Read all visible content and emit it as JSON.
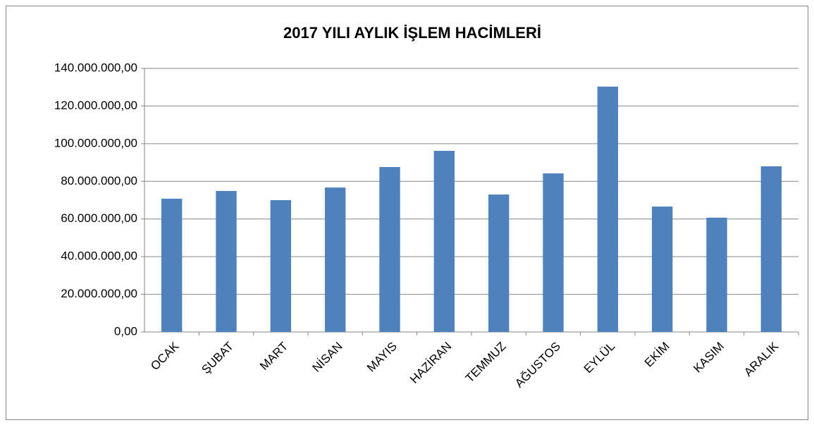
{
  "chart_data": {
    "type": "bar",
    "title": "2017 YILI AYLIK İŞLEM HACİMLERİ",
    "categories": [
      "OCAK",
      "ŞUBAT",
      "MART",
      "NİSAN",
      "MAYIS",
      "HAZİRAN",
      "TEMMUZ",
      "AĞUSTOS",
      "EYLÜL",
      "EKİM",
      "KASIM",
      "ARALIK"
    ],
    "values": [
      70800000,
      74900000,
      70000000,
      76700000,
      87600000,
      96200000,
      73000000,
      84200000,
      130300000,
      66600000,
      60700000,
      88000000
    ],
    "color": "#4f81bd",
    "ylim": [
      0,
      140000000
    ],
    "yticks": [
      {
        "value": 0,
        "label": "0,00"
      },
      {
        "value": 20000000,
        "label": "20.000.000,00"
      },
      {
        "value": 40000000,
        "label": "40.000.000,00"
      },
      {
        "value": 60000000,
        "label": "60.000.000,00"
      },
      {
        "value": 80000000,
        "label": "80.000.000,00"
      },
      {
        "value": 100000000,
        "label": "100.000.000,00"
      },
      {
        "value": 120000000,
        "label": "120.000.000,00"
      },
      {
        "value": 140000000,
        "label": "140.000.000,00"
      }
    ],
    "grid": true
  }
}
